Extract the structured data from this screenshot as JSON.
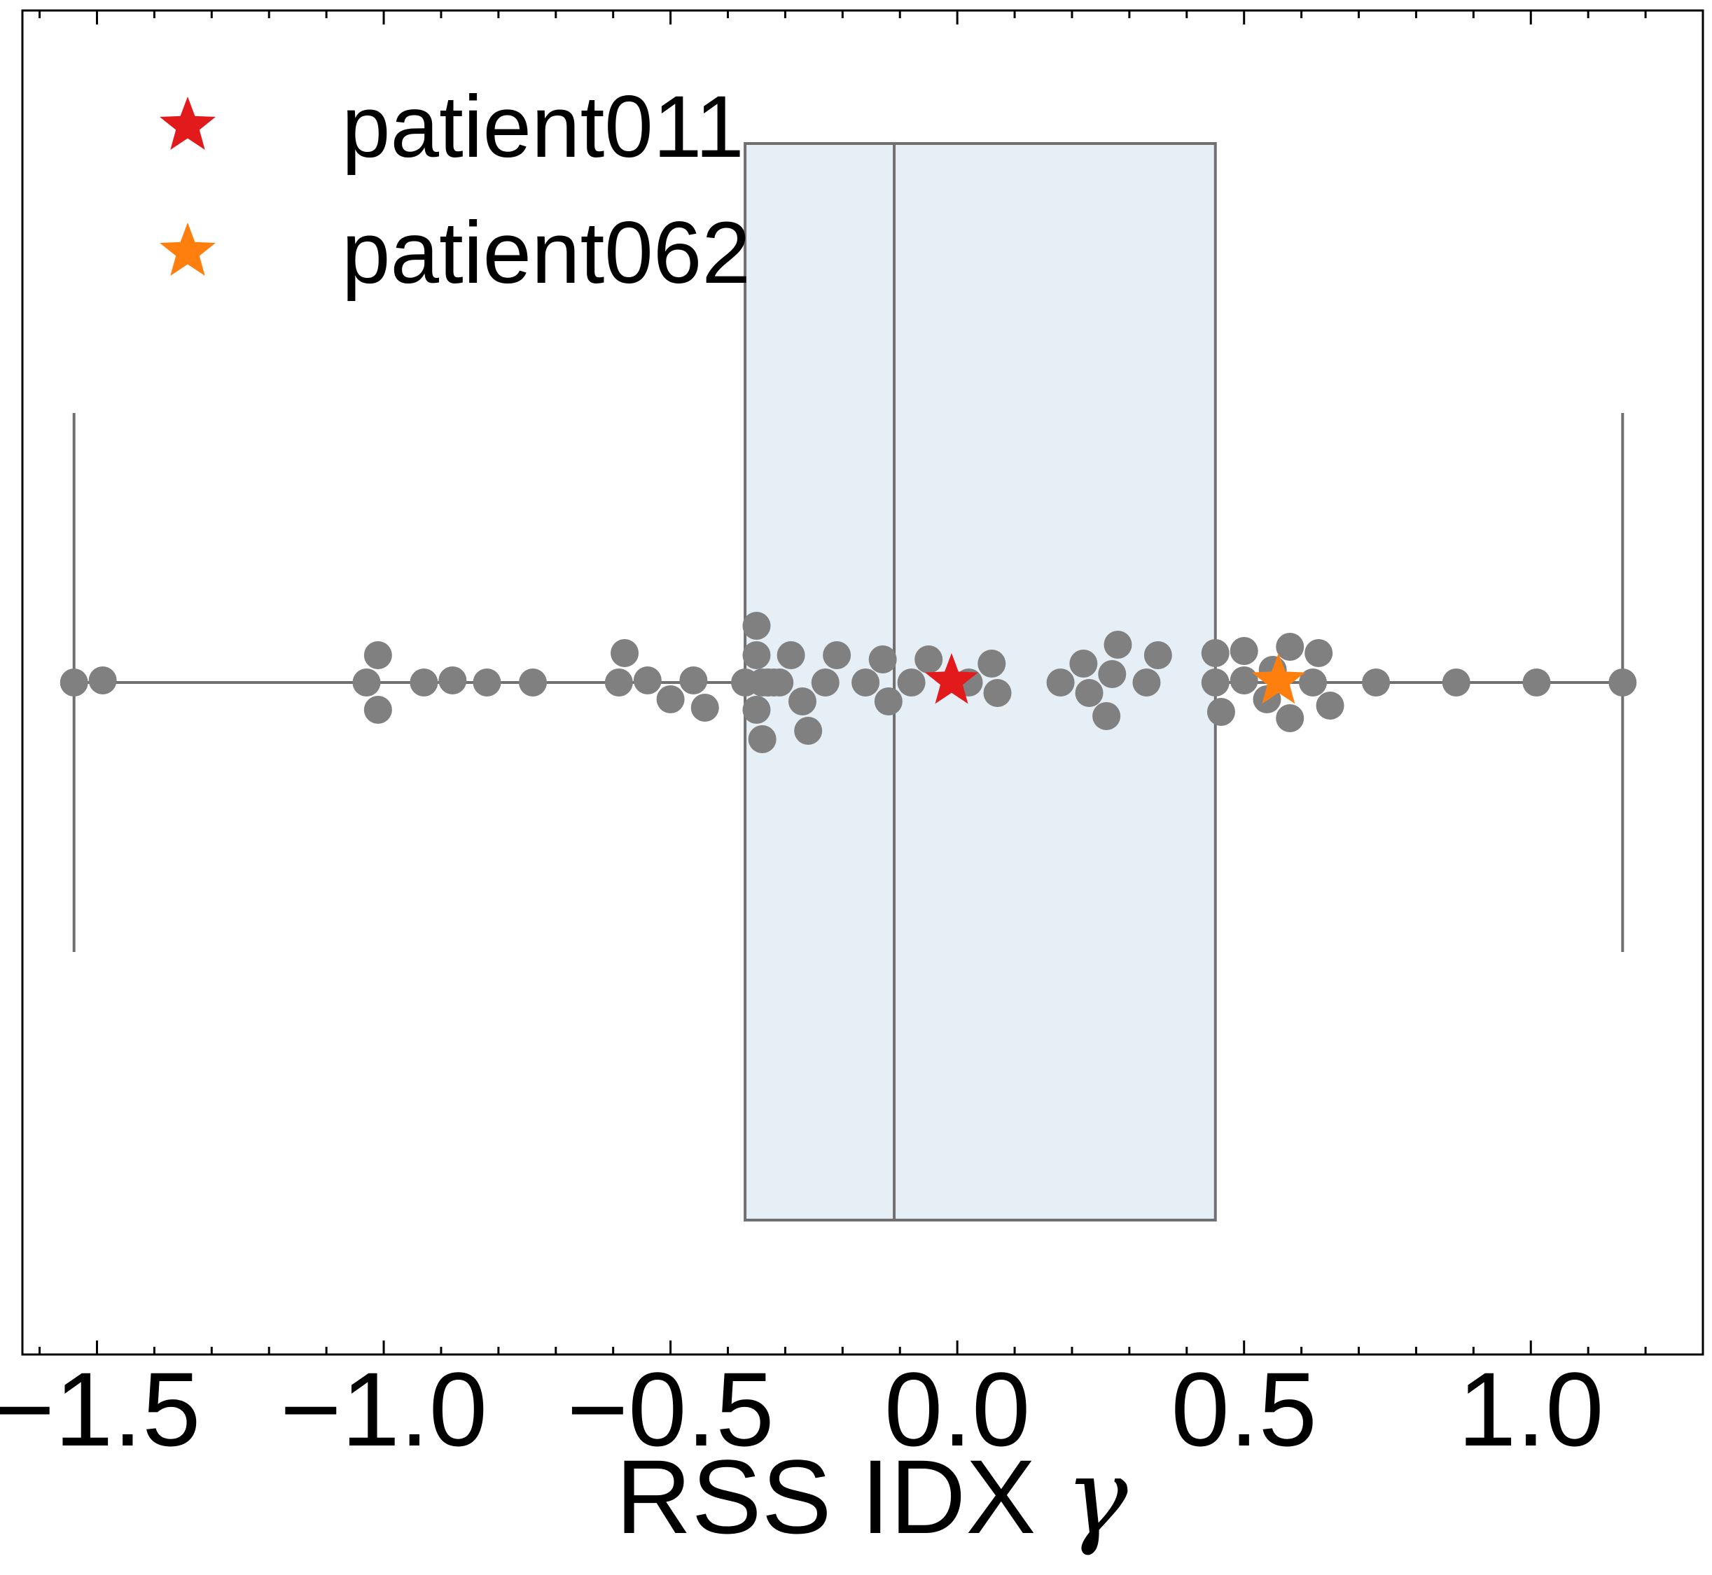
{
  "chart_data": {
    "type": "box-swarm",
    "xlabel_text": "RSS IDX ",
    "xlabel_symbol": "γ",
    "xlim": [
      -1.63,
      1.3
    ],
    "xticks": [
      {
        "value": -1.5,
        "label": "−1.5"
      },
      {
        "value": -1.0,
        "label": "−1.0"
      },
      {
        "value": -0.5,
        "label": "−0.5"
      },
      {
        "value": 0.0,
        "label": "0.0"
      },
      {
        "value": 0.5,
        "label": "0.5"
      },
      {
        "value": 1.0,
        "label": "1.0"
      }
    ],
    "grid": false,
    "legend_position": "top-left",
    "box": {
      "q1": -0.37,
      "median": -0.11,
      "q3": 0.45,
      "whisker_low": -1.54,
      "whisker_high": 1.16,
      "fill": "#e6eff5",
      "stroke": "#707070"
    },
    "points_color": "#808080",
    "points": [
      -1.54,
      -1.49,
      -1.03,
      -1.01,
      -1.01,
      -0.93,
      -0.88,
      -0.82,
      -0.74,
      -0.59,
      -0.58,
      -0.54,
      -0.5,
      -0.46,
      -0.44,
      -0.37,
      -0.35,
      -0.35,
      -0.35,
      -0.34,
      -0.34,
      -0.33,
      -0.33,
      -0.32,
      -0.31,
      -0.29,
      -0.27,
      -0.26,
      -0.23,
      -0.21,
      -0.16,
      -0.13,
      -0.12,
      -0.08,
      -0.05,
      0.02,
      0.06,
      0.07,
      0.18,
      0.22,
      0.23,
      0.26,
      0.27,
      0.28,
      0.33,
      0.35,
      0.45,
      0.45,
      0.46,
      0.5,
      0.5,
      0.54,
      0.55,
      0.58,
      0.58,
      0.62,
      0.63,
      0.65,
      0.73,
      0.87,
      1.01,
      1.16
    ],
    "highlights": [
      {
        "name": "patient011",
        "value": -0.01,
        "color": "#e31a1c"
      },
      {
        "name": "patient062",
        "value": 0.56,
        "color": "#ff7f0e"
      }
    ]
  }
}
